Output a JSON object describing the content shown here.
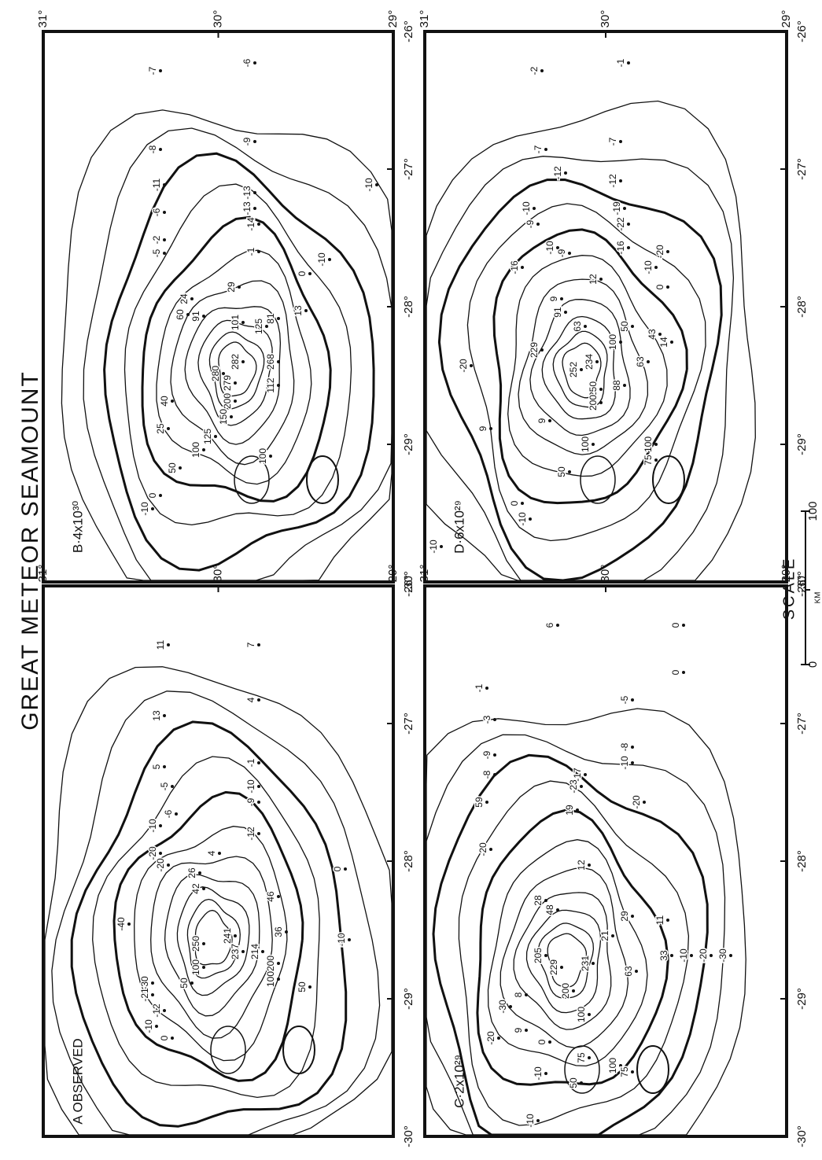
{
  "title": "GREAT METEOR SEAMOUNT",
  "scale": {
    "ticks": [
      "0",
      "100"
    ],
    "label": "SCALE",
    "unit": "KM"
  },
  "panels": [
    {
      "label": "A OBSERVED",
      "longitude_ticks": [
        "-26°",
        "-27°",
        "-28°",
        "-29°",
        "-30°"
      ],
      "latitude_ticks": [
        "31°",
        "30°",
        "29°"
      ],
      "contour_labels": [
        "11",
        "7",
        "13",
        "4",
        "5",
        "-1",
        "-5",
        "-10",
        "-9",
        "-6",
        "-10",
        "-12",
        "-20",
        "-20",
        "4",
        "26",
        "42",
        "46",
        "-40",
        "36",
        "250",
        "241",
        "237",
        "214",
        "200",
        "100",
        "50",
        "-10",
        "0",
        "-30",
        "-21",
        "-12",
        "-10",
        "50",
        "100",
        "0"
      ]
    },
    {
      "label": "B·4x10³⁰",
      "longitude_ticks": [
        "-26°",
        "-27°",
        "-28°",
        "-29°",
        "-30°"
      ],
      "latitude_ticks": [
        "31°",
        "30°",
        "29°"
      ],
      "contour_labels": [
        "-7",
        "-6",
        "-8",
        "-9",
        "-11",
        "-13",
        "-6",
        "-13",
        "-14",
        "-2",
        "-1",
        "-5",
        "-10",
        "-10",
        "0",
        "29",
        "24",
        "60",
        "91",
        "101",
        "125",
        "81",
        "13",
        "282",
        "280",
        "279",
        "268",
        "200",
        "150",
        "112",
        "125",
        "100",
        "100",
        "40",
        "25",
        "50",
        "0",
        "-10"
      ]
    },
    {
      "label": "C·2x10²⁹",
      "longitude_ticks": [
        "-26°",
        "-27°",
        "-28°",
        "-29°",
        "-30°"
      ],
      "latitude_ticks": [
        "31°",
        "30°",
        "29°"
      ],
      "contour_labels": [
        "-1",
        "6",
        "0",
        "0",
        "-3",
        "-5",
        "-9",
        "-8",
        "-8",
        "-10",
        "-17",
        "-23",
        "-20",
        "59",
        "19",
        "-20",
        "12",
        "28",
        "48",
        "29",
        "11",
        "205",
        "229",
        "231",
        "21",
        "33",
        "63",
        "200",
        "100",
        "-10",
        "-20",
        "-30",
        "75",
        "100",
        "75",
        "50",
        "8",
        "-30",
        "9",
        "-20",
        "0",
        "-10",
        "-10"
      ]
    },
    {
      "label": "D·6x10²⁹",
      "longitude_ticks": [
        "-26°",
        "-27°",
        "-28°",
        "-29°",
        "-30°"
      ],
      "latitude_ticks": [
        "31°",
        "30°",
        "29°"
      ],
      "contour_labels": [
        "-2",
        "-1",
        "-7",
        "-7",
        "-12",
        "-12",
        "-10",
        "-19",
        "-9",
        "-22",
        "-10",
        "-9",
        "-16",
        "-16",
        "-20",
        "-10",
        "0",
        "12",
        "9",
        "91",
        "63",
        "100",
        "50",
        "43",
        "14",
        "229",
        "252",
        "234",
        "250",
        "200",
        "88",
        "63",
        "-20",
        "9",
        "9",
        "100",
        "100",
        "75",
        "50",
        "0",
        "-10",
        "-10"
      ]
    }
  ]
}
